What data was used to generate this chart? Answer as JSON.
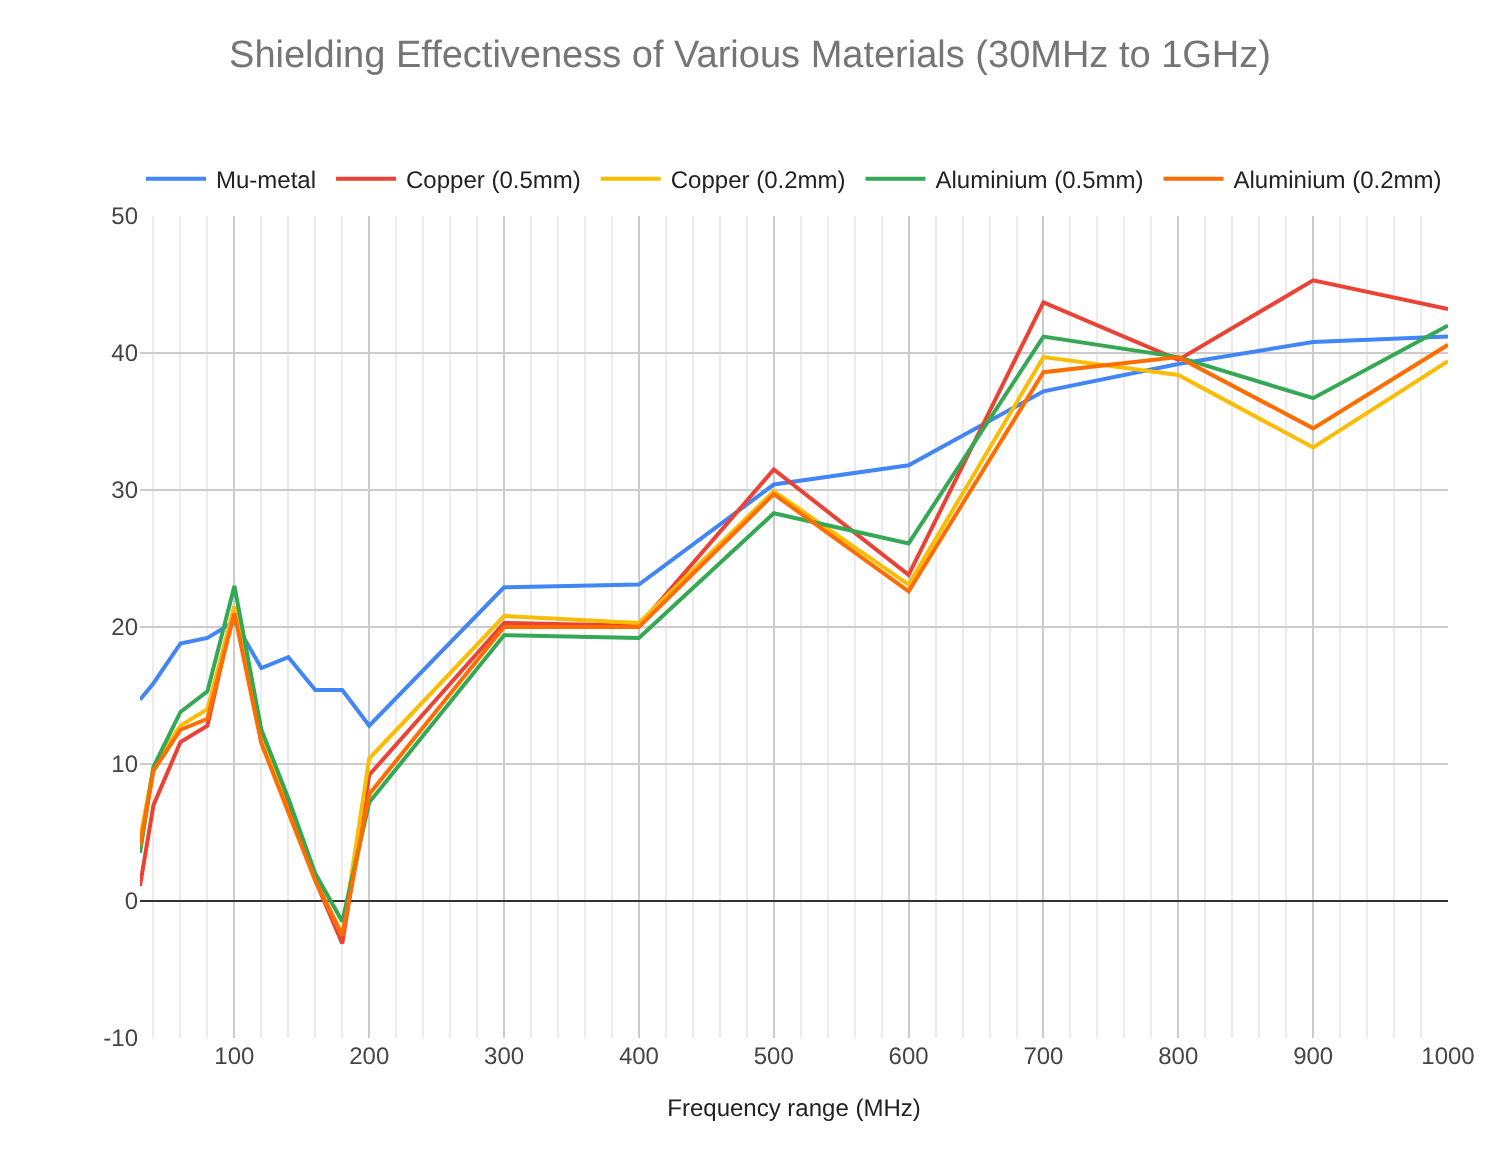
{
  "chart_data": {
    "type": "line",
    "title": "Shielding Effectiveness of Various Materials (30MHz to 1GHz)",
    "xlabel": "Frequency range (MHz)",
    "x": [
      30,
      40,
      60,
      80,
      100,
      120,
      140,
      160,
      180,
      200,
      300,
      400,
      500,
      600,
      700,
      800,
      900,
      1000
    ],
    "series": [
      {
        "name": "Mu-metal",
        "color": "#4285f4",
        "values": [
          14.7,
          15.9,
          18.8,
          19.2,
          20.4,
          17.0,
          17.8,
          15.4,
          15.4,
          12.8,
          22.9,
          23.1,
          30.4,
          31.8,
          37.2,
          39.2,
          40.8,
          41.2
        ]
      },
      {
        "name": "Copper (0.5mm)",
        "color": "#ea4335",
        "values": [
          1.1,
          7.0,
          11.6,
          12.8,
          21.5,
          12.0,
          7.0,
          1.5,
          -3.1,
          9.2,
          20.3,
          20.1,
          31.5,
          23.8,
          43.7,
          39.5,
          45.3,
          43.2
        ]
      },
      {
        "name": "Copper (0.2mm)",
        "color": "#fbbc04",
        "values": [
          4.5,
          9.8,
          12.8,
          14.0,
          21.5,
          12.0,
          6.5,
          1.5,
          -2.5,
          10.4,
          20.8,
          20.3,
          29.9,
          23.1,
          39.7,
          38.4,
          33.1,
          39.4
        ]
      },
      {
        "name": "Aluminium (0.5mm)",
        "color": "#34a853",
        "values": [
          3.5,
          9.8,
          13.8,
          15.3,
          23.0,
          12.5,
          7.5,
          2.0,
          -1.5,
          7.2,
          19.4,
          19.2,
          28.3,
          26.1,
          41.2,
          39.7,
          36.7,
          42.0
        ]
      },
      {
        "name": "Aluminium (0.2mm)",
        "color": "#ff6d01",
        "values": [
          4.0,
          9.5,
          12.5,
          13.3,
          21.0,
          11.5,
          6.5,
          1.5,
          -2.5,
          7.8,
          20.0,
          20.0,
          29.7,
          22.6,
          38.6,
          39.7,
          34.5,
          40.6
        ]
      }
    ],
    "xlim": [
      30,
      1000
    ],
    "xticks": [
      100,
      200,
      300,
      400,
      500,
      600,
      700,
      800,
      900,
      1000
    ],
    "ylim": [
      -10,
      50
    ],
    "yticks": [
      -10,
      0,
      10,
      20,
      30,
      40,
      50
    ],
    "grid": true,
    "legend": "top",
    "marker": "none",
    "line_style": "solid"
  }
}
